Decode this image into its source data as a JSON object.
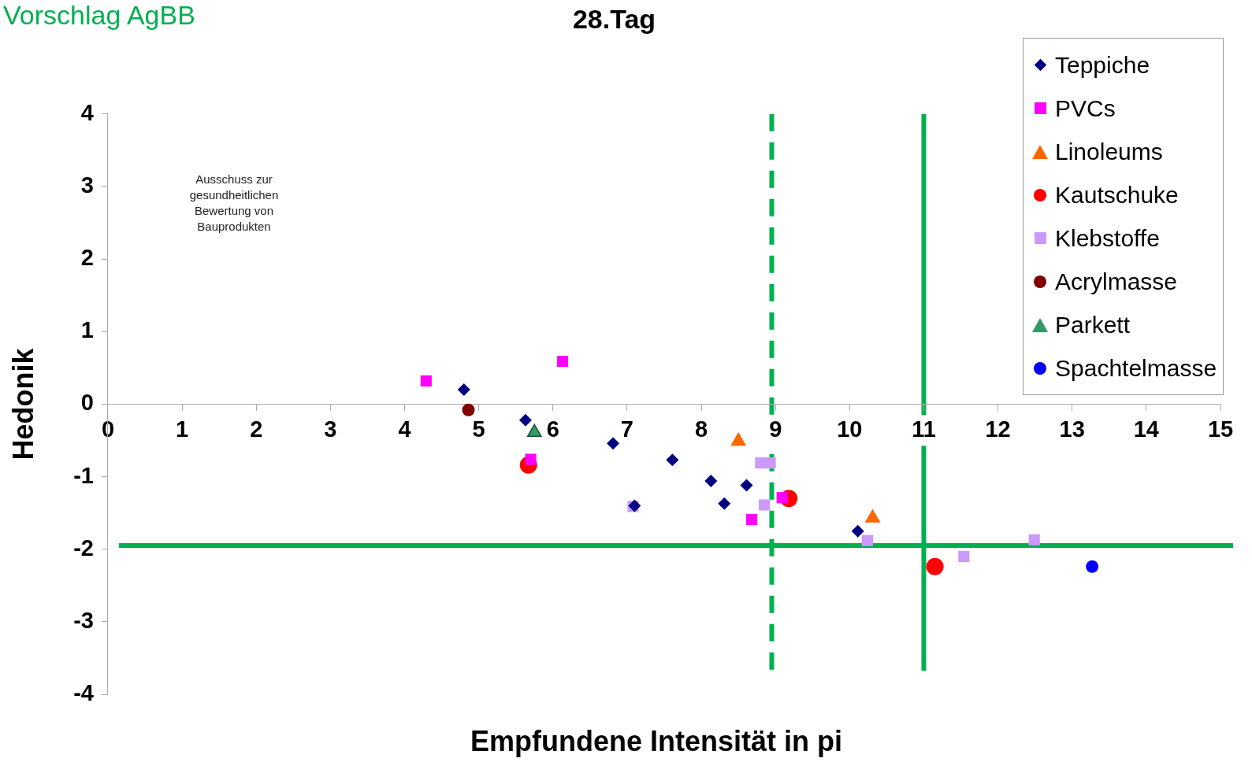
{
  "chart_data": {
    "type": "scatter",
    "title": "28.Tag",
    "subtitle": "Vorschlag AgBB",
    "xlabel": "Empfundene Intensität in pi",
    "ylabel": "Hedonik",
    "annotations": [
      "Ausschuss zur gesundheitlichen Bewertung von Bauprodukten"
    ],
    "xlim": [
      0,
      15
    ],
    "xticks": [
      0,
      1,
      2,
      3,
      4,
      5,
      6,
      7,
      8,
      9,
      10,
      11,
      12,
      13,
      14,
      15
    ],
    "ylim": [
      -4,
      4
    ],
    "yticks": [
      -4,
      -3,
      -2,
      -1,
      0,
      1,
      2,
      3,
      4
    ],
    "grid": false,
    "legend": "top right",
    "series": [
      {
        "name": "Teppiche",
        "color": "#000080",
        "marker": "diamond",
        "x": [
          4.8,
          5.63,
          6.81,
          7.1,
          7.61,
          8.13,
          8.31,
          8.61,
          10.11
        ],
        "values": [
          0.2,
          -0.22,
          -0.54,
          -1.4,
          -0.77,
          -1.06,
          -1.37,
          -1.12,
          -1.75
        ]
      },
      {
        "name": "PVCs",
        "color": "#ff00ff",
        "marker": "square",
        "x": [
          4.29,
          6.13,
          5.7,
          8.68,
          9.09
        ],
        "values": [
          0.32,
          0.59,
          -0.76,
          -1.59,
          -1.29
        ]
      },
      {
        "name": "Linoleums",
        "color": "#ff6600",
        "marker": "triangle",
        "x": [
          8.5,
          10.31
        ],
        "values": [
          -0.51,
          -1.57
        ]
      },
      {
        "name": "Kautschuke",
        "color": "#ff0000",
        "marker": "circle",
        "x": [
          5.67,
          9.18,
          11.15
        ],
        "values": [
          -0.84,
          -1.3,
          -2.24
        ]
      },
      {
        "name": "Klebstoffe",
        "color": "#cc99ff",
        "marker": "square",
        "x": [
          7.08,
          8.85,
          8.8,
          8.93,
          10.24,
          11.54,
          12.49
        ],
        "values": [
          -1.41,
          -1.39,
          -0.81,
          -0.81,
          -1.88,
          -2.1,
          -1.87
        ]
      },
      {
        "name": "Acrylmasse",
        "color": "#800000",
        "marker": "circle",
        "x": [
          4.86
        ],
        "values": [
          -0.08
        ]
      },
      {
        "name": "Parkett",
        "color": "#339966",
        "marker": "triangle",
        "x": [
          5.75
        ],
        "values": [
          -0.39
        ]
      },
      {
        "name": "Spachtelmasse",
        "color": "#0000ff",
        "marker": "circle",
        "x": [
          13.27
        ],
        "values": [
          -2.24
        ]
      }
    ],
    "ref_lines": [
      {
        "axis": "x",
        "value": 8.95,
        "color": "#00b050",
        "line_style": "dashed"
      },
      {
        "axis": "x",
        "value": 11,
        "color": "#00b050",
        "line_style": "solid"
      },
      {
        "axis": "y",
        "value": -1.95,
        "color": "#00b050",
        "line_style": "solid"
      }
    ]
  }
}
